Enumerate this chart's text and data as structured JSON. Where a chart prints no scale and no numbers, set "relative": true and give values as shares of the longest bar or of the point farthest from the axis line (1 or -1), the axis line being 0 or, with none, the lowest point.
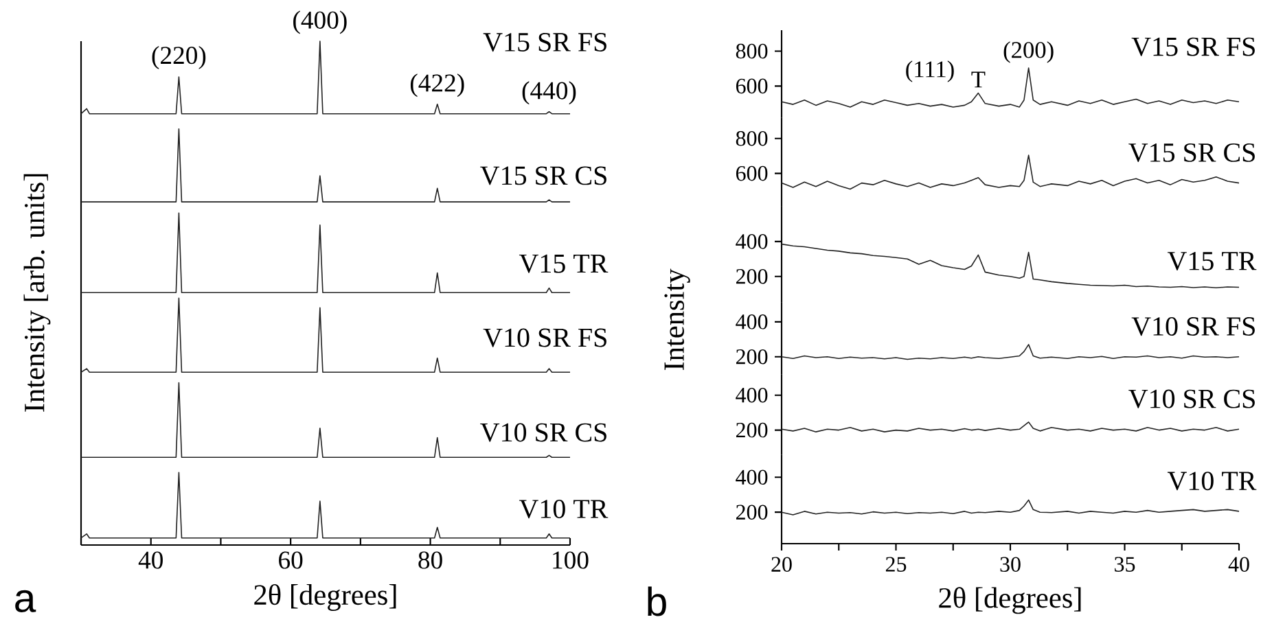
{
  "chart_data": [
    {
      "type": "line",
      "relative": true,
      "xlabel": "2θ [degrees]",
      "ylabel": "Intensity [arb. units]",
      "xlim": [
        30,
        100
      ],
      "xticks": [
        {
          "value": 30,
          "label": null
        },
        40,
        {
          "value": 50,
          "label": null
        },
        60,
        {
          "value": 70,
          "label": null
        },
        80,
        {
          "value": 90,
          "label": null
        },
        100
      ],
      "x": [
        30,
        30.8,
        31.2,
        32,
        43.6,
        44,
        44.4,
        46,
        63.8,
        64.2,
        64.6,
        66,
        80.6,
        81,
        81.4,
        96.6,
        97,
        97.4,
        100
      ],
      "series": [
        {
          "name": "V15 SR FS",
          "color": "#222222",
          "values": [
            0.856,
            0.866,
            0.856,
            0.856,
            0.856,
            0.929,
            0.856,
            0.856,
            0.856,
            1.0,
            0.856,
            0.856,
            0.856,
            0.875,
            0.856,
            0.856,
            0.86,
            0.856,
            0.856
          ]
        },
        {
          "name": "V15 SR CS",
          "color": "#222222",
          "values": [
            0.681,
            0.681,
            0.681,
            0.681,
            0.681,
            0.826,
            0.681,
            0.681,
            0.681,
            0.733,
            0.681,
            0.681,
            0.681,
            0.708,
            0.681,
            0.681,
            0.685,
            0.681,
            0.681
          ]
        },
        {
          "name": "V15 TR",
          "color": "#222222",
          "values": [
            0.501,
            0.501,
            0.501,
            0.501,
            0.501,
            0.659,
            0.501,
            0.501,
            0.501,
            0.635,
            0.501,
            0.501,
            0.501,
            0.54,
            0.501,
            0.501,
            0.51,
            0.501,
            0.501
          ]
        },
        {
          "name": "V10 SR FS",
          "color": "#222222",
          "values": [
            0.343,
            0.35,
            0.343,
            0.343,
            0.343,
            0.49,
            0.343,
            0.343,
            0.343,
            0.471,
            0.343,
            0.343,
            0.343,
            0.371,
            0.343,
            0.343,
            0.35,
            0.343,
            0.343
          ]
        },
        {
          "name": "V10 SR CS",
          "color": "#222222",
          "values": [
            0.174,
            0.174,
            0.174,
            0.174,
            0.174,
            0.322,
            0.174,
            0.174,
            0.174,
            0.232,
            0.174,
            0.174,
            0.174,
            0.213,
            0.174,
            0.174,
            0.178,
            0.174,
            0.174
          ]
        },
        {
          "name": "V10 TR",
          "color": "#222222",
          "values": [
            0.014,
            0.022,
            0.014,
            0.014,
            0.014,
            0.144,
            0.014,
            0.014,
            0.014,
            0.087,
            0.014,
            0.014,
            0.014,
            0.035,
            0.014,
            0.014,
            0.022,
            0.014,
            0.014
          ]
        }
      ],
      "annotations": [
        {
          "text": "(220)",
          "x": 44,
          "y": 0.94
        },
        {
          "text": "(400)",
          "x": 64.2,
          "y": 1.01
        },
        {
          "text": "(422)",
          "x": 81,
          "y": 0.885
        },
        {
          "text": "(440)",
          "x": 97,
          "y": 0.87
        },
        "a"
      ]
    },
    {
      "type": "line",
      "tick_labels": "y",
      "xlim": [
        20,
        40
      ],
      "ylim": [
        420,
        920
      ],
      "yticks": [
        600,
        800
      ],
      "x": [
        20,
        20.5,
        21,
        21.5,
        22,
        22.5,
        23,
        23.5,
        24,
        24.5,
        25,
        25.5,
        26,
        26.5,
        27,
        27.5,
        28,
        28.3,
        28.6,
        28.9,
        29.5,
        30,
        30.4,
        30.6,
        30.8,
        31.0,
        31.3,
        31.8,
        32.5,
        33,
        33.5,
        34,
        34.5,
        35,
        35.5,
        36,
        36.5,
        37,
        37.5,
        38,
        38.5,
        39,
        39.5,
        40
      ],
      "series": [
        {
          "name": "V15 SR FS",
          "color": "#222222",
          "values": [
            510,
            495,
            520,
            490,
            515,
            500,
            480,
            510,
            495,
            520,
            505,
            490,
            500,
            485,
            495,
            480,
            490,
            510,
            560,
            500,
            485,
            495,
            480,
            520,
            704,
            520,
            495,
            510,
            490,
            515,
            500,
            520,
            495,
            510,
            525,
            500,
            515,
            495,
            520,
            505,
            515,
            500,
            520,
            510
          ]
        }
      ],
      "annotations": [
        "(111)",
        {
          "text": "T",
          "x": 28.6,
          "y": 580
        },
        {
          "text": "(200)",
          "x": 30.8,
          "y": 720
        }
      ]
    },
    {
      "type": "line",
      "tick_labels": "y",
      "xlim": [
        20,
        40
      ],
      "ylim": [
        410,
        920
      ],
      "yticks": [
        600,
        800
      ],
      "x": [
        20,
        20.5,
        21,
        21.5,
        22,
        22.5,
        23,
        23.5,
        24,
        24.5,
        25,
        25.5,
        26,
        26.5,
        27,
        27.5,
        28,
        28.3,
        28.6,
        28.9,
        29.5,
        30,
        30.4,
        30.6,
        30.8,
        31.0,
        31.3,
        31.8,
        32.5,
        33,
        33.5,
        34,
        34.5,
        35,
        35.5,
        36,
        36.5,
        37,
        37.5,
        38,
        38.5,
        39,
        39.5,
        40
      ],
      "series": [
        {
          "name": "V15 SR CS",
          "color": "#222222",
          "values": [
            545,
            520,
            550,
            525,
            555,
            530,
            510,
            545,
            535,
            560,
            540,
            525,
            545,
            520,
            540,
            530,
            545,
            560,
            576,
            535,
            520,
            530,
            525,
            560,
            704,
            550,
            525,
            540,
            530,
            555,
            540,
            560,
            530,
            555,
            570,
            545,
            560,
            535,
            565,
            550,
            560,
            580,
            555,
            545
          ]
        }
      ]
    },
    {
      "type": "line",
      "tick_labels": "y",
      "ylabel": "Intensity",
      "xlim": [
        20,
        40
      ],
      "ylim": [
        50,
        600
      ],
      "yticks": [
        200,
        400
      ],
      "x": [
        20,
        20.5,
        21,
        21.5,
        22,
        22.5,
        23,
        23.5,
        24,
        24.5,
        25,
        25.5,
        26,
        26.5,
        27,
        27.5,
        28,
        28.3,
        28.6,
        28.9,
        29.5,
        30,
        30.4,
        30.6,
        30.8,
        31.0,
        31.3,
        31.8,
        32.5,
        33,
        33.5,
        34,
        34.5,
        35,
        35.5,
        36,
        36.5,
        37,
        37.5,
        38,
        38.5,
        39,
        39.5,
        40
      ],
      "series": [
        {
          "name": "V15 TR",
          "color": "#222222",
          "values": [
            385,
            375,
            370,
            360,
            350,
            345,
            335,
            330,
            320,
            315,
            308,
            300,
            270,
            292,
            262,
            250,
            240,
            260,
            323,
            225,
            208,
            200,
            190,
            200,
            338,
            185,
            180,
            170,
            160,
            155,
            150,
            148,
            146,
            150,
            142,
            145,
            140,
            138,
            142,
            136,
            140,
            135,
            140,
            138
          ]
        }
      ]
    },
    {
      "type": "line",
      "tick_labels": "y",
      "xlim": [
        20,
        40
      ],
      "ylim": [
        100,
        510
      ],
      "yticks": [
        200,
        400
      ],
      "x": [
        20,
        20.5,
        21,
        21.5,
        22,
        22.5,
        23,
        23.5,
        24,
        24.5,
        25,
        25.5,
        26,
        26.5,
        27,
        27.5,
        28,
        28.3,
        28.6,
        28.9,
        29.5,
        30,
        30.4,
        30.6,
        30.8,
        31.0,
        31.3,
        31.8,
        32.5,
        33,
        33.5,
        34,
        34.5,
        35,
        35.5,
        36,
        36.5,
        37,
        37.5,
        38,
        38.5,
        39,
        39.5,
        40
      ],
      "series": [
        {
          "name": "V10 SR FS",
          "color": "#222222",
          "values": [
            200,
            190,
            205,
            195,
            200,
            190,
            198,
            192,
            195,
            188,
            195,
            185,
            192,
            188,
            195,
            190,
            198,
            192,
            200,
            195,
            190,
            198,
            205,
            230,
            270,
            205,
            192,
            198,
            190,
            200,
            195,
            202,
            190,
            200,
            198,
            205,
            195,
            200,
            192,
            205,
            198,
            200,
            195,
            200
          ]
        }
      ]
    },
    {
      "type": "line",
      "tick_labels": "y",
      "xlim": [
        20,
        40
      ],
      "ylim": [
        60,
        520
      ],
      "yticks": [
        200,
        400
      ],
      "x": [
        20,
        20.5,
        21,
        21.5,
        22,
        22.5,
        23,
        23.5,
        24,
        24.5,
        25,
        25.5,
        26,
        26.5,
        27,
        27.5,
        28,
        28.3,
        28.6,
        28.9,
        29.5,
        30,
        30.4,
        30.6,
        30.8,
        31.0,
        31.3,
        31.8,
        32.5,
        33,
        33.5,
        34,
        34.5,
        35,
        35.5,
        36,
        36.5,
        37,
        37.5,
        38,
        38.5,
        39,
        39.5,
        40
      ],
      "series": [
        {
          "name": "V10 SR CS",
          "color": "#222222",
          "values": [
            205,
            195,
            210,
            190,
            205,
            200,
            215,
            195,
            205,
            190,
            200,
            195,
            210,
            200,
            205,
            195,
            208,
            200,
            205,
            198,
            210,
            200,
            205,
            225,
            246,
            210,
            195,
            215,
            200,
            205,
            195,
            210,
            200,
            205,
            195,
            215,
            200,
            210,
            195,
            205,
            200,
            215,
            195,
            205
          ]
        }
      ]
    },
    {
      "type": "line",
      "xlabel": "2θ [degrees]",
      "xlim": [
        20,
        40
      ],
      "xticks": [
        20,
        {
          "value": 22.5,
          "label": null
        },
        25,
        {
          "value": 27.5,
          "label": null
        },
        30,
        {
          "value": 32.5,
          "label": null
        },
        35,
        {
          "value": 37.5,
          "label": null
        },
        40
      ],
      "ylim": [
        20,
        530
      ],
      "yticks": [
        200,
        400
      ],
      "x": [
        20,
        20.5,
        21,
        21.5,
        22,
        22.5,
        23,
        23.5,
        24,
        24.5,
        25,
        25.5,
        26,
        26.5,
        27,
        27.5,
        28,
        28.3,
        28.6,
        28.9,
        29.5,
        30,
        30.4,
        30.6,
        30.8,
        31.0,
        31.3,
        31.8,
        32.5,
        33,
        33.5,
        34,
        34.5,
        35,
        35.5,
        36,
        36.5,
        37,
        37.5,
        38,
        38.5,
        39,
        39.5,
        40
      ],
      "series": [
        {
          "name": "V10 TR",
          "color": "#222222",
          "values": [
            200,
            185,
            205,
            190,
            200,
            195,
            198,
            190,
            202,
            195,
            200,
            192,
            198,
            195,
            200,
            192,
            205,
            195,
            200,
            198,
            205,
            200,
            210,
            235,
            270,
            215,
            200,
            198,
            205,
            195,
            205,
            200,
            195,
            205,
            200,
            210,
            200,
            205,
            210,
            215,
            205,
            210,
            215,
            205
          ]
        }
      ],
      "annotations": [
        "b"
      ]
    }
  ]
}
